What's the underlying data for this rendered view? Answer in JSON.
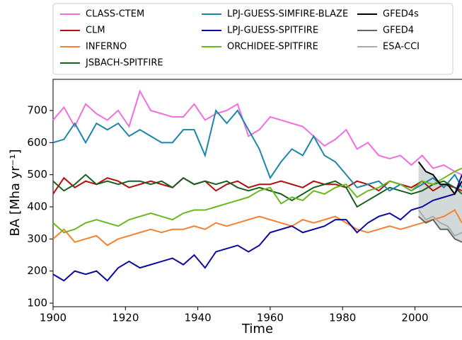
{
  "chart_data": {
    "type": "line",
    "xlabel": "Time",
    "ylabel": "BA [Mha yr⁻¹]",
    "xlim": [
      1900,
      2013
    ],
    "ylim": [
      89,
      797
    ],
    "xticks": [
      1900,
      1920,
      1940,
      1960,
      1980,
      2000
    ],
    "yticks": [
      100,
      200,
      300,
      400,
      500,
      600,
      700
    ],
    "x": [
      1900,
      1903,
      1906,
      1909,
      1912,
      1915,
      1918,
      1921,
      1924,
      1927,
      1930,
      1933,
      1936,
      1939,
      1942,
      1945,
      1948,
      1951,
      1954,
      1957,
      1960,
      1963,
      1966,
      1969,
      1972,
      1975,
      1978,
      1981,
      1984,
      1987,
      1990,
      1993,
      1996,
      1999,
      2002,
      2005,
      2008,
      2011,
      2013
    ],
    "series": [
      {
        "name": "CLASS-CTEM",
        "color": "#f06ee0",
        "values": [
          670,
          710,
          650,
          720,
          690,
          670,
          700,
          650,
          760,
          700,
          690,
          680,
          680,
          720,
          670,
          690,
          700,
          720,
          620,
          640,
          680,
          670,
          660,
          650,
          620,
          590,
          610,
          640,
          580,
          600,
          560,
          550,
          560,
          530,
          560,
          520,
          530,
          510,
          500
        ]
      },
      {
        "name": "CLM",
        "color": "#b01010",
        "values": [
          440,
          490,
          460,
          480,
          470,
          490,
          480,
          460,
          470,
          480,
          470,
          460,
          490,
          470,
          480,
          450,
          470,
          480,
          460,
          470,
          470,
          480,
          470,
          460,
          480,
          470,
          470,
          460,
          480,
          470,
          450,
          480,
          470,
          460,
          480,
          450,
          470,
          460,
          450
        ]
      },
      {
        "name": "INFERNO",
        "color": "#f58231",
        "values": [
          300,
          330,
          290,
          300,
          310,
          280,
          300,
          310,
          320,
          330,
          320,
          330,
          330,
          340,
          330,
          350,
          340,
          350,
          360,
          370,
          360,
          350,
          340,
          360,
          350,
          360,
          370,
          350,
          330,
          320,
          330,
          340,
          330,
          340,
          350,
          360,
          370,
          390,
          350
        ]
      },
      {
        "name": "JSBACH-SPITFIRE",
        "color": "#1a5e20",
        "values": [
          480,
          450,
          470,
          500,
          470,
          480,
          470,
          480,
          480,
          470,
          480,
          460,
          490,
          470,
          480,
          470,
          480,
          460,
          450,
          460,
          450,
          440,
          420,
          440,
          460,
          470,
          480,
          460,
          400,
          420,
          440,
          460,
          450,
          440,
          450,
          470,
          480,
          460,
          440
        ]
      },
      {
        "name": "LPJ-GUESS-SIMFIRE-BLAZE",
        "color": "#1a86a8",
        "values": [
          600,
          610,
          660,
          600,
          660,
          640,
          660,
          620,
          640,
          620,
          600,
          600,
          640,
          640,
          560,
          700,
          660,
          700,
          640,
          580,
          490,
          540,
          580,
          560,
          620,
          560,
          540,
          500,
          460,
          470,
          480,
          450,
          470,
          450,
          470,
          490,
          460,
          500,
          460
        ]
      },
      {
        "name": "LPJ-GUESS-SPITFIRE",
        "color": "#0a0aa0",
        "values": [
          190,
          170,
          200,
          190,
          200,
          170,
          210,
          230,
          210,
          220,
          230,
          240,
          220,
          250,
          210,
          260,
          270,
          280,
          260,
          280,
          320,
          330,
          340,
          320,
          330,
          340,
          360,
          360,
          320,
          350,
          370,
          380,
          360,
          390,
          400,
          420,
          430,
          440,
          500
        ]
      },
      {
        "name": "ORCHIDEE-SPITFIRE",
        "color": "#6ab820",
        "values": [
          350,
          320,
          330,
          350,
          360,
          350,
          340,
          360,
          370,
          380,
          370,
          360,
          380,
          390,
          390,
          400,
          410,
          420,
          430,
          450,
          460,
          410,
          430,
          420,
          450,
          440,
          460,
          470,
          430,
          450,
          460,
          480,
          470,
          450,
          480,
          470,
          490,
          510,
          520
        ]
      },
      {
        "name": "GFED4s",
        "color": "#000000",
        "x": [
          2001,
          2003,
          2005,
          2007,
          2009,
          2011,
          2013
        ],
        "values": [
          540,
          510,
          500,
          470,
          470,
          440,
          480
        ]
      },
      {
        "name": "GFED4",
        "color": "#666666",
        "x": [
          2001,
          2003,
          2005,
          2007,
          2009,
          2011,
          2013
        ],
        "values": [
          370,
          350,
          360,
          330,
          330,
          300,
          290
        ]
      },
      {
        "name": "ESA-CCI",
        "color": "#aaaaaa",
        "x": [
          2001,
          2003,
          2005,
          2007,
          2009,
          2011,
          2013
        ],
        "values": [
          390,
          360,
          370,
          350,
          340,
          310,
          320
        ]
      }
    ]
  }
}
